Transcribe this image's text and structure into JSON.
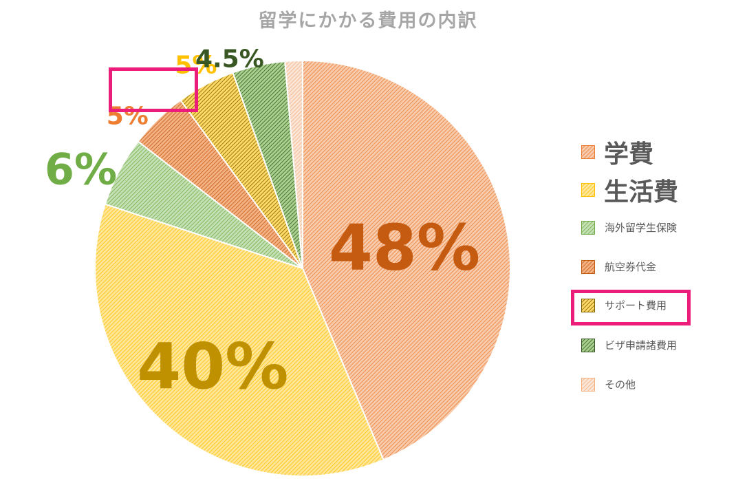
{
  "chart_data": {
    "type": "pie",
    "title": "留学にかかる費用の内訳",
    "slices": [
      {
        "name": "学費",
        "value": 48,
        "label": "48%",
        "fill": "#f8cbad",
        "stroke": "#ed7d31",
        "label_color": "#c55a11"
      },
      {
        "name": "生活費",
        "value": 40,
        "label": "40%",
        "fill": "#ffe699",
        "stroke": "#ffc000",
        "label_color": "#bf9000"
      },
      {
        "name": "海外留学生保険",
        "value": 6,
        "label": "6%",
        "fill": "#c5e0b4",
        "stroke": "#70ad47",
        "label_color": "#70ad47"
      },
      {
        "name": "航空券代金",
        "value": 5,
        "label": "5%",
        "fill": "#f4b183",
        "stroke": "#c55a11",
        "label_color": "#ed7d31"
      },
      {
        "name": "サポート費用",
        "value": 5,
        "label": "5%",
        "fill": "#ffd966",
        "stroke": "#7f6000",
        "label_color": "#ffc000"
      },
      {
        "name": "ビザ申請諸費用",
        "value": 4.5,
        "label": "4.5%",
        "fill": "#a9d18e",
        "stroke": "#375623",
        "label_color": "#385723"
      },
      {
        "name": "その他",
        "value": 1.5,
        "label": "",
        "fill": "#fbe5d6",
        "stroke": "#f4b183",
        "label_color": "#f4b183"
      }
    ],
    "legend_position": "right",
    "highlighted": [
      "サポート費用"
    ]
  },
  "colors": {
    "title": "#a6a6a6",
    "legend_text": "#595959",
    "highlight_box": "#ec1c7a"
  }
}
